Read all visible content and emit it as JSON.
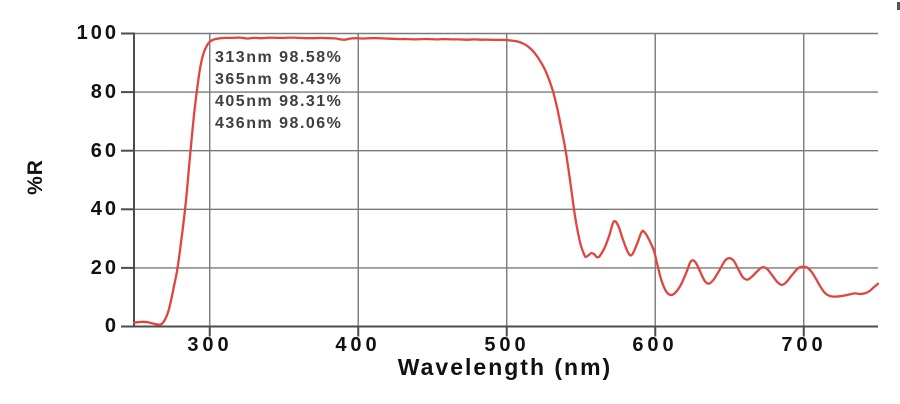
{
  "chart_data": {
    "type": "line",
    "title": "",
    "xlabel": "Wavelength (nm)",
    "ylabel": "%R",
    "xlim": [
      249,
      750
    ],
    "ylim": [
      0,
      100
    ],
    "x_ticks": [
      300,
      400,
      500,
      600,
      700
    ],
    "y_ticks": [
      0,
      20,
      40,
      60,
      80,
      100
    ],
    "grid": true,
    "legend": false,
    "line_color": "#e0453f",
    "grid_color": "#7a7a7a",
    "axis_color": "#4d4d4d",
    "annotations": [
      "313nm 98.58%",
      "365nm 98.43%",
      "405nm 98.31%",
      "436nm 98.06%"
    ],
    "annotation_values": [
      {
        "wavelength_nm": 313,
        "reflectance_pct": 98.58
      },
      {
        "wavelength_nm": 365,
        "reflectance_pct": 98.43
      },
      {
        "wavelength_nm": 405,
        "reflectance_pct": 98.31
      },
      {
        "wavelength_nm": 436,
        "reflectance_pct": 98.06
      }
    ],
    "series": [
      {
        "name": "%R",
        "points": [
          [
            249,
            1.3
          ],
          [
            252,
            1.5
          ],
          [
            255,
            1.6
          ],
          [
            258,
            1.5
          ],
          [
            261,
            1.1
          ],
          [
            264,
            0.8
          ],
          [
            266,
            0.6
          ],
          [
            268,
            1.0
          ],
          [
            270,
            2.5
          ],
          [
            272,
            5
          ],
          [
            274,
            9
          ],
          [
            276,
            14
          ],
          [
            278,
            19
          ],
          [
            280,
            26
          ],
          [
            282,
            34
          ],
          [
            284,
            43
          ],
          [
            286,
            54
          ],
          [
            288,
            65
          ],
          [
            290,
            75
          ],
          [
            292,
            83
          ],
          [
            294,
            89.5
          ],
          [
            296,
            93.5
          ],
          [
            298,
            95.8
          ],
          [
            300,
            97.2
          ],
          [
            303,
            98.0
          ],
          [
            306,
            98.3
          ],
          [
            310,
            98.5
          ],
          [
            315,
            98.5
          ],
          [
            320,
            98.6
          ],
          [
            325,
            98.3
          ],
          [
            330,
            98.5
          ],
          [
            335,
            98.4
          ],
          [
            340,
            98.6
          ],
          [
            345,
            98.5
          ],
          [
            350,
            98.5
          ],
          [
            355,
            98.6
          ],
          [
            360,
            98.5
          ],
          [
            365,
            98.4
          ],
          [
            370,
            98.4
          ],
          [
            375,
            98.5
          ],
          [
            380,
            98.4
          ],
          [
            385,
            98.3
          ],
          [
            388,
            98.0
          ],
          [
            391,
            97.9
          ],
          [
            394,
            98.2
          ],
          [
            398,
            98.4
          ],
          [
            403,
            98.3
          ],
          [
            408,
            98.4
          ],
          [
            413,
            98.4
          ],
          [
            418,
            98.3
          ],
          [
            423,
            98.2
          ],
          [
            428,
            98.1
          ],
          [
            433,
            98.1
          ],
          [
            438,
            98.0
          ],
          [
            443,
            98.1
          ],
          [
            448,
            98.1
          ],
          [
            453,
            98.0
          ],
          [
            458,
            98.1
          ],
          [
            463,
            98.0
          ],
          [
            468,
            98.0
          ],
          [
            473,
            97.9
          ],
          [
            478,
            98.0
          ],
          [
            483,
            97.9
          ],
          [
            488,
            97.9
          ],
          [
            493,
            97.8
          ],
          [
            498,
            97.8
          ],
          [
            503,
            97.6
          ],
          [
            507,
            97.3
          ],
          [
            511,
            96.6
          ],
          [
            515,
            95.3
          ],
          [
            519,
            93.2
          ],
          [
            523,
            90.2
          ],
          [
            527,
            86.2
          ],
          [
            531,
            80.5
          ],
          [
            534,
            74.5
          ],
          [
            537,
            67
          ],
          [
            540,
            59
          ],
          [
            543,
            48.5
          ],
          [
            546,
            37.5
          ],
          [
            549,
            29.5
          ],
          [
            551,
            26
          ],
          [
            553,
            23.8
          ],
          [
            555,
            24.3
          ],
          [
            557,
            25.1
          ],
          [
            559,
            24.6
          ],
          [
            561,
            23.6
          ],
          [
            563,
            24.3
          ],
          [
            566,
            27
          ],
          [
            569,
            31
          ],
          [
            572,
            35.8
          ],
          [
            575,
            34.5
          ],
          [
            578,
            30
          ],
          [
            581,
            26
          ],
          [
            583,
            24.3
          ],
          [
            585,
            25
          ],
          [
            588,
            28.5
          ],
          [
            591,
            32.4
          ],
          [
            593,
            32
          ],
          [
            596,
            29.5
          ],
          [
            599,
            26
          ],
          [
            601,
            22
          ],
          [
            604,
            16
          ],
          [
            607,
            12.3
          ],
          [
            610,
            10.8
          ],
          [
            613,
            11.3
          ],
          [
            617,
            14
          ],
          [
            621,
            18.5
          ],
          [
            624,
            22.3
          ],
          [
            627,
            22
          ],
          [
            630,
            19
          ],
          [
            633,
            15.8
          ],
          [
            636,
            14.6
          ],
          [
            639,
            15.8
          ],
          [
            643,
            19
          ],
          [
            647,
            22.5
          ],
          [
            650,
            23.3
          ],
          [
            653,
            22.3
          ],
          [
            656,
            19.5
          ],
          [
            659,
            16.8
          ],
          [
            662,
            16
          ],
          [
            665,
            17
          ],
          [
            669,
            19
          ],
          [
            672,
            20.2
          ],
          [
            675,
            19.8
          ],
          [
            678,
            18
          ],
          [
            682,
            15.3
          ],
          [
            685,
            14.2
          ],
          [
            688,
            15
          ],
          [
            692,
            17.5
          ],
          [
            696,
            19.8
          ],
          [
            699,
            20.4
          ],
          [
            702,
            20.2
          ],
          [
            705,
            18.8
          ],
          [
            708,
            16.5
          ],
          [
            711,
            13.8
          ],
          [
            714,
            11.6
          ],
          [
            717,
            10.5
          ],
          [
            720,
            10.2
          ],
          [
            724,
            10.3
          ],
          [
            728,
            10.6
          ],
          [
            732,
            11.1
          ],
          [
            735,
            11.3
          ],
          [
            738,
            11.1
          ],
          [
            741,
            11.3
          ],
          [
            744,
            12
          ],
          [
            747,
            13.3
          ],
          [
            750,
            14.6
          ]
        ]
      }
    ]
  },
  "labels": {
    "y_ticks": [
      "0",
      "20",
      "40",
      "60",
      "80",
      "100"
    ],
    "x_ticks": [
      "300",
      "400",
      "500",
      "600",
      "700"
    ]
  }
}
